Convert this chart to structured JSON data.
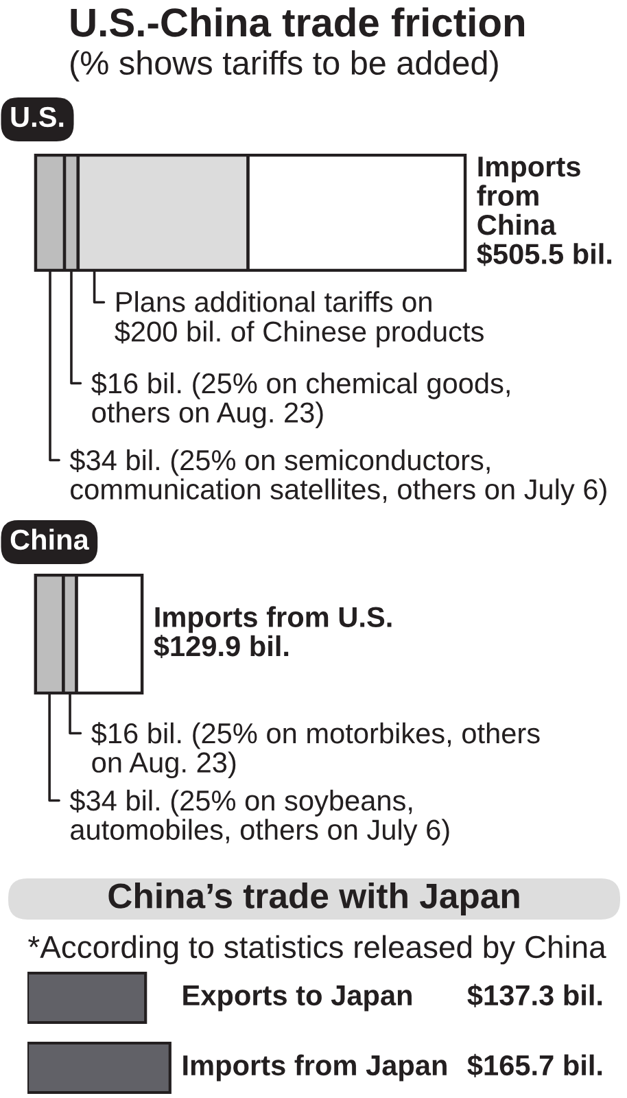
{
  "chart_data": [
    {
      "type": "bar",
      "title": "U.S.-China trade friction",
      "subtitle": "(% shows tariffs to be added)",
      "orientation": "horizontal",
      "stacked": true,
      "tick_labels": "y",
      "categories": [
        "U.S."
      ],
      "series": [
        {
          "color": "#bdbdbd",
          "values": [
            34
          ],
          "value_labels": [
            "$34 bil. (25% on semiconductors,\ncommunication satellites, others on July 6)"
          ]
        },
        {
          "color": "#bdbdbd",
          "values": [
            16
          ],
          "value_labels": [
            "$16 bil. (25% on chemical goods,\nothers on Aug. 23)"
          ]
        },
        {
          "color": "#dcdcdc",
          "values": [
            200
          ],
          "value_labels": [
            "Plans additional tariffs on\n$200 bil. of Chinese products"
          ]
        },
        {
          "color": "#ffffff",
          "values": [
            255.5
          ]
        }
      ],
      "totals": [
        "Imports\nfrom\nChina\n$505.5 bil."
      ]
    },
    {
      "type": "bar",
      "orientation": "horizontal",
      "stacked": true,
      "tick_labels": "y",
      "categories": [
        "China"
      ],
      "series": [
        {
          "color": "#bdbdbd",
          "values": [
            34
          ],
          "value_labels": [
            "$34 bil. (25% on soybeans,\nautomobiles, others on July 6)"
          ]
        },
        {
          "color": "#bdbdbd",
          "values": [
            16
          ],
          "value_labels": [
            "$16 bil. (25% on motorbikes, others\non Aug. 23)"
          ]
        },
        {
          "color": "#ffffff",
          "values": [
            79.9
          ]
        }
      ],
      "totals": [
        "Imports from U.S.\n$129.9 bil."
      ]
    },
    {
      "type": "bar",
      "title": "China’s trade with Japan",
      "subtitle": "*According to statistics released by China",
      "orientation": "horizontal",
      "tick_labels": "y",
      "categories": [
        "Exports to Japan",
        "Imports from Japan"
      ],
      "values": [
        137.3,
        165.7
      ],
      "color": "#616167",
      "value_labels": [
        "$137.3 bil.",
        "$165.7 bil."
      ]
    }
  ]
}
